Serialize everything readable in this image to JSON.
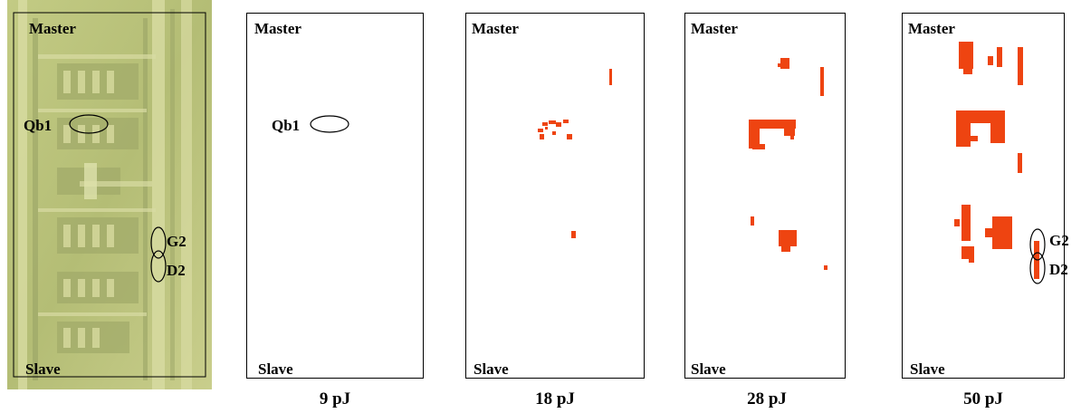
{
  "labels": {
    "master": "Master",
    "slave": "Slave",
    "qb1": "Qb1",
    "g2": "G2",
    "d2": "D2"
  },
  "panels": [
    {
      "caption": ""
    },
    {
      "caption": "9 pJ"
    },
    {
      "caption": "18 pJ"
    },
    {
      "caption": "28 pJ"
    },
    {
      "caption": "50 pJ"
    }
  ],
  "colors": {
    "die_base": "#b9c27a",
    "die_trace": "#d7dba0",
    "die_dark": "#8f9a63",
    "spot": "#ee4411"
  }
}
